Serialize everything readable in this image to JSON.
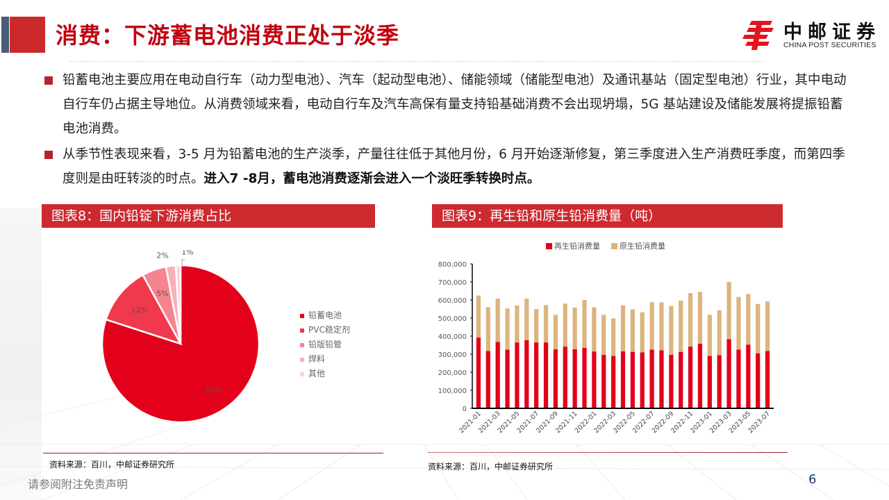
{
  "header": {
    "title": "消费：下游蓄电池消费正处于淡季",
    "logo_cn": "中邮证券",
    "logo_en": "CHINA POST SECURITIES"
  },
  "bullets": [
    {
      "text": "铅蓄电池主要应用在电动自行车（动力型电池）、汽车（起动型电池）、储能领域（储能型电池）及通讯基站（固定型电池）行业，其中电动自行车仍占据主导地位。从消费领域来看，电动自行车及汽车高保有量支持铅基础消费不会出现坍塌，5G 基站建设及储能发展将提振铅蓄电池消费。",
      "bold": ""
    },
    {
      "text": "从季节性表现来看，3-5 月为铅蓄电池的生产淡季，产量往往低于其他月份，6 月开始逐渐修复，第三季度进入生产消费旺季度，而第四季度则是由旺转淡的时点。",
      "bold": "进入7 -8月，蓄电池消费逐渐会进入一个淡旺季转换时点。"
    }
  ],
  "figure8": {
    "title": "图表8：国内铅锭下游消费占比",
    "source": "资料来源：百川，中邮证券研究所"
  },
  "figure9": {
    "title": "图表9：再生铅和原生铅消费量（吨）",
    "source": "资料来源：百川，中邮证券研究所"
  },
  "footer": {
    "disclaimer": "请参阅附注免责声明",
    "page_number": "6"
  },
  "colors": {
    "brand_red": "#cc2a2f",
    "title_red": "#c0000f",
    "recycled_red": "#e3001b",
    "primary_tan": "#dcb47e",
    "page_num_blue": "#1f3a6e"
  },
  "chart_data": [
    {
      "type": "pie",
      "title": "图表8：国内铅锭下游消费占比",
      "categories": [
        "铅蓄电池",
        "PVC稳定剂",
        "铅版铅管",
        "焊料",
        "其他"
      ],
      "values": [
        80,
        12,
        5,
        2,
        1
      ],
      "labels": [
        "80%",
        "12%",
        "5%",
        "2%",
        "1%"
      ],
      "colors": [
        "#e3001b",
        "#f0394c",
        "#f5848e",
        "#f8b0b6",
        "#fbd3d6"
      ],
      "legend_position": "right"
    },
    {
      "type": "bar",
      "stacked": true,
      "title": "图表9：再生铅和原生铅消费量（吨）",
      "xlabel": "",
      "ylabel": "",
      "ylim": [
        0,
        800000
      ],
      "yticks": [
        "0",
        "100,000",
        "200,000",
        "300,000",
        "400,000",
        "500,000",
        "600,000",
        "700,000",
        "800,000"
      ],
      "xtick_labels": [
        "2021-01",
        "2021-03",
        "2021-05",
        "2021-07",
        "2021-09",
        "2021-11",
        "2022-01",
        "2022-03",
        "2022-05",
        "2022-07",
        "2022-09",
        "2022-11",
        "2023-01",
        "2023-03",
        "2023-05",
        "2023-07"
      ],
      "legend_position": "top",
      "grid": false,
      "categories": [
        "2021-01",
        "2021-02",
        "2021-03",
        "2021-04",
        "2021-05",
        "2021-06",
        "2021-07",
        "2021-08",
        "2021-09",
        "2021-10",
        "2021-11",
        "2021-12",
        "2022-01",
        "2022-02",
        "2022-03",
        "2022-04",
        "2022-05",
        "2022-06",
        "2022-07",
        "2022-08",
        "2022-09",
        "2022-10",
        "2022-11",
        "2022-12",
        "2023-01",
        "2023-02",
        "2023-03",
        "2023-04",
        "2023-05",
        "2023-06",
        "2023-07"
      ],
      "series": [
        {
          "name": "再生铅消费量",
          "color": "#e3001b",
          "values": [
            392000,
            318000,
            368000,
            325000,
            365000,
            378000,
            365000,
            365000,
            327000,
            342000,
            327000,
            335000,
            315000,
            297000,
            290000,
            316000,
            313000,
            310000,
            325000,
            322000,
            297000,
            313000,
            342000,
            358000,
            290000,
            295000,
            383000,
            325000,
            353000,
            305000,
            318000
          ]
        },
        {
          "name": "原生铅消费量",
          "color": "#dcb47e",
          "values": [
            233000,
            242000,
            240000,
            228000,
            205000,
            229000,
            185000,
            207000,
            191000,
            238000,
            231000,
            265000,
            245000,
            221000,
            208000,
            254000,
            235000,
            222000,
            263000,
            265000,
            270000,
            284000,
            296000,
            287000,
            228000,
            248000,
            317000,
            292000,
            280000,
            273000,
            274000
          ]
        }
      ]
    }
  ]
}
